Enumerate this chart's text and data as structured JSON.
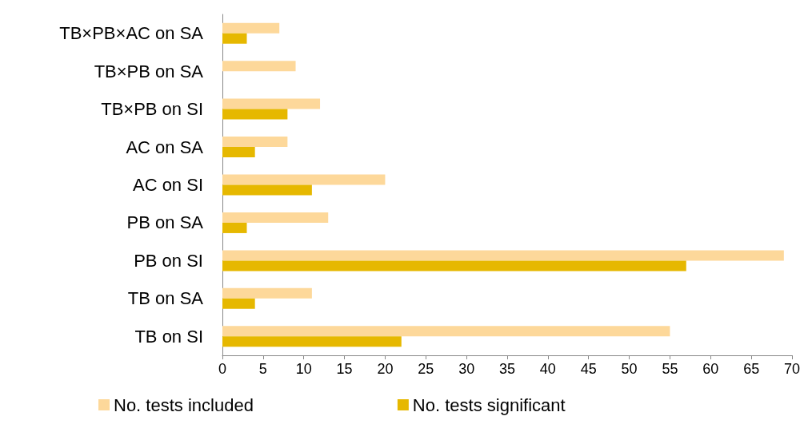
{
  "chart_data": {
    "type": "bar",
    "orientation": "horizontal",
    "categories": [
      "TB×PB×AC on SA",
      "TB×PB on SA",
      "TB×PB on SI",
      "AC on SA",
      "AC on SI",
      "PB on SA",
      "PB on SI",
      "TB on SA",
      "TB on SI"
    ],
    "series": [
      {
        "name": "No. tests included",
        "color": "#fdd89a",
        "values": [
          7,
          9,
          12,
          8,
          20,
          13,
          69,
          11,
          55
        ]
      },
      {
        "name": "No. tests significant",
        "color": "#e6b800",
        "values": [
          3,
          0,
          8,
          4,
          11,
          3,
          57,
          4,
          22
        ]
      }
    ],
    "xlim": [
      0,
      70
    ],
    "xticks": [
      0,
      5,
      10,
      15,
      20,
      25,
      30,
      35,
      40,
      45,
      50,
      55,
      60,
      65,
      70
    ],
    "grid": false,
    "legend": "bottom"
  }
}
